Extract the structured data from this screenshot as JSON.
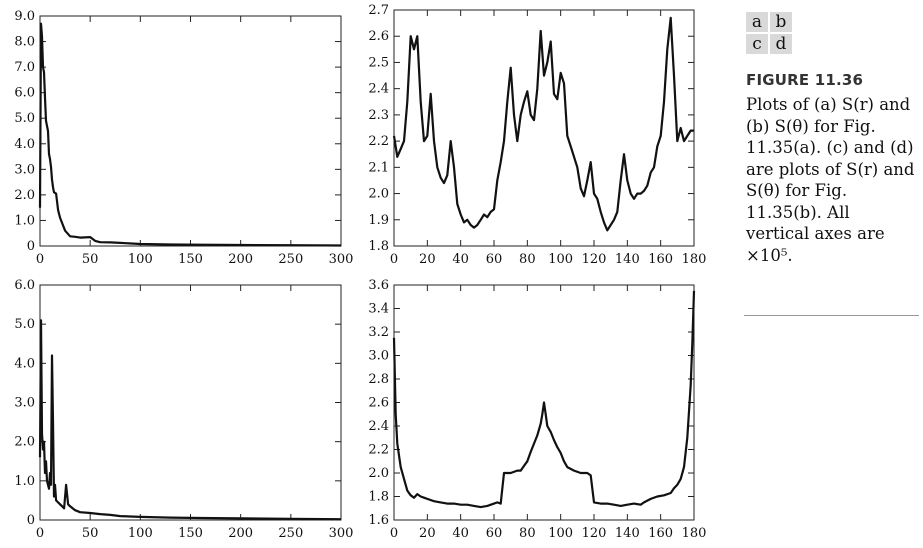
{
  "figure": {
    "panel_letters": [
      "a",
      "b",
      "c",
      "d"
    ],
    "title": "FIGURE 11.36",
    "caption": "Plots of (a) S(r) and (b) S(θ) for Fig. 11.35(a). (c) and (d) are plots of S(r) and S(θ) for Fig. 11.35(b). All vertical axes are ×10⁵."
  },
  "chart_data": [
    {
      "panel": "a",
      "type": "line",
      "xlim": [
        0,
        300
      ],
      "ylim": [
        0,
        9
      ],
      "x_ticks": [
        "0",
        "50",
        "100",
        "150",
        "200",
        "250",
        "300"
      ],
      "y_ticks": [
        "0",
        "1.0",
        "2.0",
        "3.0",
        "4.0",
        "5.0",
        "6.0",
        "7.0",
        "8.0",
        "9.0"
      ],
      "grid": false,
      "x": [
        0,
        1,
        2,
        3,
        4,
        5,
        6,
        7,
        8,
        9,
        10,
        11,
        12,
        13,
        14,
        16,
        18,
        20,
        22,
        25,
        30,
        35,
        40,
        50,
        55,
        60,
        70,
        80,
        100,
        130,
        160,
        200,
        250,
        300
      ],
      "y": [
        1.5,
        8.7,
        8.2,
        7.0,
        6.8,
        5.8,
        4.9,
        4.7,
        4.5,
        3.6,
        3.4,
        3.1,
        2.6,
        2.3,
        2.1,
        2.05,
        1.4,
        1.1,
        0.9,
        0.6,
        0.38,
        0.36,
        0.33,
        0.35,
        0.2,
        0.15,
        0.14,
        0.12,
        0.08,
        0.06,
        0.05,
        0.04,
        0.03,
        0.02
      ]
    },
    {
      "panel": "b",
      "type": "line",
      "xlim": [
        0,
        180
      ],
      "ylim": [
        1.8,
        2.7
      ],
      "x_ticks": [
        "0",
        "20",
        "40",
        "60",
        "80",
        "100",
        "120",
        "140",
        "160",
        "180"
      ],
      "y_ticks": [
        "1.8",
        "1.9",
        "2.0",
        "2.1",
        "2.2",
        "2.3",
        "2.4",
        "2.5",
        "2.6",
        "2.7"
      ],
      "grid": false,
      "x": [
        0,
        2,
        4,
        6,
        8,
        10,
        12,
        14,
        16,
        18,
        20,
        22,
        24,
        26,
        28,
        30,
        32,
        34,
        36,
        38,
        40,
        42,
        44,
        46,
        48,
        50,
        52,
        54,
        56,
        58,
        60,
        62,
        64,
        66,
        68,
        70,
        72,
        74,
        76,
        78,
        80,
        82,
        84,
        86,
        88,
        90,
        92,
        94,
        96,
        98,
        100,
        102,
        104,
        106,
        108,
        110,
        112,
        114,
        116,
        118,
        120,
        122,
        124,
        126,
        128,
        130,
        132,
        134,
        136,
        138,
        140,
        142,
        144,
        146,
        148,
        150,
        152,
        154,
        156,
        158,
        160,
        162,
        164,
        166,
        168,
        170,
        172,
        174,
        176,
        178,
        180
      ],
      "y": [
        2.22,
        2.14,
        2.17,
        2.2,
        2.35,
        2.6,
        2.55,
        2.6,
        2.35,
        2.2,
        2.22,
        2.38,
        2.2,
        2.1,
        2.06,
        2.04,
        2.07,
        2.2,
        2.1,
        1.96,
        1.92,
        1.89,
        1.9,
        1.88,
        1.87,
        1.88,
        1.9,
        1.92,
        1.91,
        1.93,
        1.94,
        2.05,
        2.12,
        2.2,
        2.35,
        2.48,
        2.3,
        2.2,
        2.3,
        2.35,
        2.39,
        2.3,
        2.28,
        2.4,
        2.62,
        2.45,
        2.5,
        2.58,
        2.38,
        2.36,
        2.46,
        2.42,
        2.22,
        2.18,
        2.14,
        2.1,
        2.02,
        1.99,
        2.05,
        2.12,
        2.0,
        1.98,
        1.93,
        1.89,
        1.86,
        1.88,
        1.9,
        1.93,
        2.05,
        2.15,
        2.05,
        2.0,
        1.98,
        2.0,
        2.0,
        2.01,
        2.03,
        2.08,
        2.1,
        2.18,
        2.22,
        2.35,
        2.55,
        2.67,
        2.45,
        2.2,
        2.25,
        2.2,
        2.22,
        2.24,
        2.24
      ]
    },
    {
      "panel": "c",
      "type": "line",
      "xlim": [
        0,
        300
      ],
      "ylim": [
        0,
        6
      ],
      "x_ticks": [
        "0",
        "50",
        "100",
        "150",
        "200",
        "250",
        "300"
      ],
      "y_ticks": [
        "0",
        "1.0",
        "2.0",
        "3.0",
        "4.0",
        "5.0",
        "6.0"
      ],
      "grid": false,
      "x": [
        0,
        1,
        2,
        3,
        4,
        5,
        6,
        7,
        8,
        9,
        10,
        11,
        12,
        13,
        14,
        15,
        16,
        18,
        20,
        22,
        24,
        26,
        28,
        30,
        35,
        40,
        50,
        60,
        70,
        80,
        100,
        130,
        160,
        200,
        250,
        300
      ],
      "y": [
        1.6,
        5.1,
        2.2,
        1.8,
        2.0,
        1.2,
        1.5,
        1.0,
        0.9,
        0.8,
        1.2,
        0.9,
        4.2,
        2.5,
        0.6,
        0.9,
        0.5,
        0.45,
        0.4,
        0.35,
        0.3,
        0.9,
        0.4,
        0.35,
        0.25,
        0.2,
        0.18,
        0.15,
        0.13,
        0.1,
        0.08,
        0.06,
        0.05,
        0.04,
        0.03,
        0.02
      ]
    },
    {
      "panel": "d",
      "type": "line",
      "xlim": [
        0,
        180
      ],
      "ylim": [
        1.6,
        3.6
      ],
      "x_ticks": [
        "0",
        "20",
        "40",
        "60",
        "80",
        "100",
        "120",
        "140",
        "160",
        "180"
      ],
      "y_ticks": [
        "1.6",
        "1.8",
        "2.0",
        "2.2",
        "2.4",
        "2.6",
        "2.8",
        "3.0",
        "3.2",
        "3.4",
        "3.6"
      ],
      "grid": false,
      "x": [
        0,
        1,
        2,
        3,
        4,
        6,
        8,
        10,
        12,
        14,
        16,
        18,
        20,
        24,
        28,
        32,
        36,
        40,
        44,
        48,
        52,
        56,
        60,
        62,
        64,
        66,
        70,
        74,
        76,
        78,
        80,
        82,
        84,
        86,
        88,
        89,
        90,
        91,
        92,
        94,
        96,
        98,
        100,
        102,
        104,
        108,
        112,
        116,
        118,
        120,
        124,
        128,
        132,
        136,
        140,
        144,
        148,
        150,
        154,
        158,
        162,
        166,
        168,
        170,
        172,
        174,
        176,
        178,
        179,
        180
      ],
      "y": [
        3.15,
        2.5,
        2.25,
        2.15,
        2.05,
        1.95,
        1.85,
        1.81,
        1.79,
        1.82,
        1.8,
        1.79,
        1.78,
        1.76,
        1.75,
        1.74,
        1.74,
        1.73,
        1.73,
        1.72,
        1.71,
        1.72,
        1.74,
        1.75,
        1.74,
        2.0,
        2.0,
        2.02,
        2.02,
        2.06,
        2.1,
        2.18,
        2.25,
        2.32,
        2.42,
        2.5,
        2.6,
        2.5,
        2.4,
        2.35,
        2.28,
        2.22,
        2.17,
        2.1,
        2.05,
        2.02,
        2.0,
        2.0,
        1.98,
        1.75,
        1.74,
        1.74,
        1.73,
        1.72,
        1.73,
        1.74,
        1.73,
        1.75,
        1.78,
        1.8,
        1.81,
        1.83,
        1.87,
        1.9,
        1.95,
        2.05,
        2.3,
        2.75,
        3.1,
        3.55
      ]
    }
  ]
}
